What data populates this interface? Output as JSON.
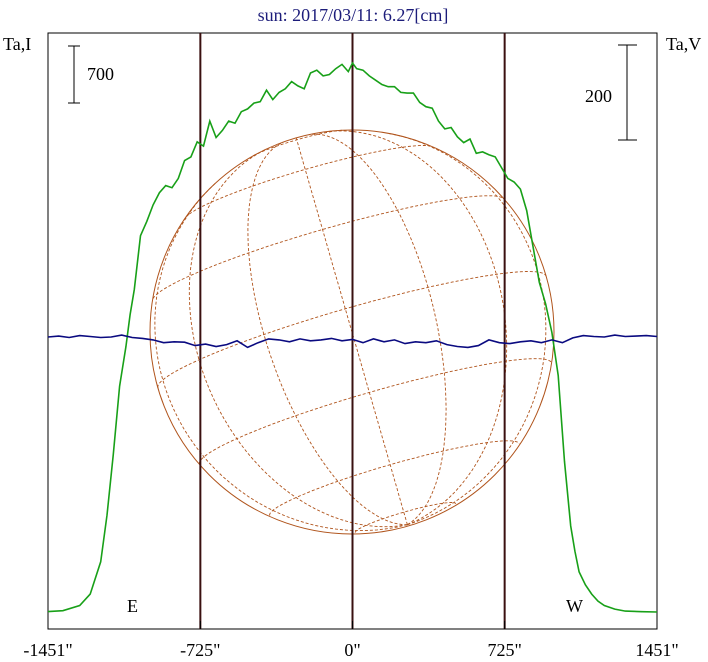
{
  "chart_data": {
    "type": "line",
    "title": "sun: 2017/03/11: 6.27[cm]",
    "y_left_label": "Ta,I",
    "y_right_label": "Ta,V",
    "scale_bar_left": "700",
    "scale_bar_right": "200",
    "east_label": "E",
    "west_label": "W",
    "xlim": [
      -1451,
      1451
    ],
    "solar_limb": [
      -725,
      725
    ],
    "x_ticks": [
      "-1451\"",
      "-725\"",
      "0\"",
      "725\"",
      "1451\""
    ],
    "x_tick_values": [
      -1451,
      -725,
      0,
      725,
      1451
    ],
    "grid": false,
    "colors": {
      "intensity": "#18a018",
      "polarization": "#0a0a80",
      "disk": "#b0541c",
      "frame": "#000000",
      "limb_lines": "#3a1010"
    },
    "series": [
      {
        "name": "Ta,I",
        "axis": "left",
        "units": "relative",
        "x": [
          -1451,
          -1380,
          -1300,
          -1250,
          -1200,
          -1170,
          -1140,
          -1110,
          -1080,
          -1060,
          -1040,
          -1010,
          -980,
          -950,
          -920,
          -890,
          -860,
          -830,
          -800,
          -770,
          -740,
          -710,
          -680,
          -650,
          -620,
          -590,
          -560,
          -530,
          -500,
          -470,
          -440,
          -410,
          -380,
          -350,
          -320,
          -290,
          -260,
          -230,
          -200,
          -170,
          -140,
          -110,
          -80,
          -50,
          -20,
          0,
          20,
          50,
          80,
          110,
          140,
          170,
          200,
          230,
          260,
          290,
          320,
          350,
          380,
          410,
          440,
          470,
          500,
          530,
          560,
          590,
          620,
          650,
          680,
          710,
          740,
          770,
          800,
          830,
          860,
          890,
          920,
          950,
          980,
          1010,
          1040,
          1060,
          1080,
          1110,
          1140,
          1170,
          1200,
          1250,
          1300,
          1380,
          1451
        ],
        "values": [
          6,
          18,
          90,
          250,
          700,
          1350,
          2200,
          3150,
          3700,
          4150,
          4500,
          5250,
          5450,
          5680,
          5850,
          5950,
          5920,
          6050,
          6300,
          6350,
          6560,
          6500,
          6850,
          6620,
          6720,
          6850,
          6820,
          6980,
          7020,
          7100,
          7120,
          7280,
          7150,
          7250,
          7300,
          7400,
          7340,
          7300,
          7520,
          7560,
          7480,
          7500,
          7580,
          7640,
          7540,
          7660,
          7580,
          7560,
          7480,
          7420,
          7360,
          7330,
          7330,
          7250,
          7240,
          7240,
          7110,
          7050,
          7030,
          6850,
          6740,
          6760,
          6630,
          6550,
          6600,
          6400,
          6420,
          6380,
          6350,
          6200,
          6050,
          6000,
          5900,
          5600,
          5100,
          4600,
          4300,
          3900,
          3300,
          2100,
          1200,
          850,
          560,
          380,
          250,
          150,
          90,
          40,
          12,
          4,
          0
        ]
      },
      {
        "name": "Ta,V",
        "axis": "right",
        "units": "relative",
        "x": [
          -1451,
          -1400,
          -1350,
          -1300,
          -1250,
          -1200,
          -1150,
          -1100,
          -1050,
          -1000,
          -950,
          -900,
          -850,
          -800,
          -750,
          -700,
          -650,
          -600,
          -550,
          -500,
          -450,
          -400,
          -350,
          -300,
          -250,
          -200,
          -150,
          -100,
          -50,
          0,
          50,
          100,
          150,
          200,
          250,
          300,
          350,
          400,
          450,
          500,
          550,
          600,
          650,
          700,
          750,
          800,
          850,
          900,
          950,
          1000,
          1050,
          1100,
          1150,
          1200,
          1250,
          1300,
          1350,
          1400,
          1451
        ],
        "values": [
          0,
          2,
          -1,
          3,
          1,
          -1,
          0,
          4,
          -1,
          -3,
          -6,
          -12,
          -10,
          -11,
          -18,
          -15,
          -20,
          -16,
          -8,
          -22,
          -12,
          -4,
          -6,
          -10,
          -4,
          -8,
          -6,
          -3,
          -8,
          -5,
          -12,
          -4,
          -10,
          -6,
          -14,
          -10,
          -12,
          -8,
          -16,
          -20,
          -22,
          -18,
          -6,
          -12,
          -14,
          -10,
          -8,
          -12,
          -6,
          -12,
          -2,
          3,
          1,
          0,
          4,
          1,
          2,
          3,
          1
        ]
      }
    ]
  }
}
